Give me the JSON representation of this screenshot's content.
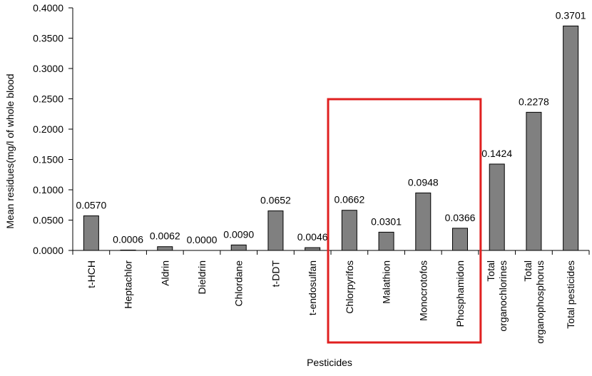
{
  "chart_data": {
    "type": "bar",
    "categories": [
      [
        "t-HCH"
      ],
      [
        "Heptachlor"
      ],
      [
        "Aldrin"
      ],
      [
        "Dieldrin"
      ],
      [
        "Chlordane"
      ],
      [
        "t-DDT"
      ],
      [
        "t-endosulfan"
      ],
      [
        "Chlorpyrifos"
      ],
      [
        "Malathion"
      ],
      [
        "Monocrotofos"
      ],
      [
        "Phosphamidon"
      ],
      [
        "Total",
        "organochlorines"
      ],
      [
        "Total",
        "organophosphorus"
      ],
      [
        "Total pesticides"
      ]
    ],
    "values": [
      0.057,
      0.0006,
      0.0062,
      0.0,
      0.009,
      0.0652,
      0.0046,
      0.0662,
      0.0301,
      0.0948,
      0.0366,
      0.1424,
      0.2278,
      0.3701
    ],
    "data_labels": [
      "0.0570",
      "0.0006",
      "0.0062",
      "0.0000",
      "0.0090",
      "0.0652",
      "0.0046",
      "0.0662",
      "0.0301",
      "0.0948",
      "0.0366",
      "0.1424",
      "0.2278",
      "0.3701"
    ],
    "ylim": [
      0,
      0.4
    ],
    "yticks": [
      "0.0000",
      "0.0500",
      "0.1000",
      "0.1500",
      "0.2000",
      "0.2500",
      "0.3000",
      "0.3500",
      "0.4000"
    ],
    "xlabel": "Pesticides",
    "ylabel": "Mean residues(mg/l of whole blood",
    "grid": false,
    "bar_color": "#808080",
    "highlight": {
      "categories": [
        "Chlorpyrifos",
        "Malathion",
        "Monocrotofos",
        "Phosphamidon"
      ],
      "color": "#e02020"
    }
  }
}
